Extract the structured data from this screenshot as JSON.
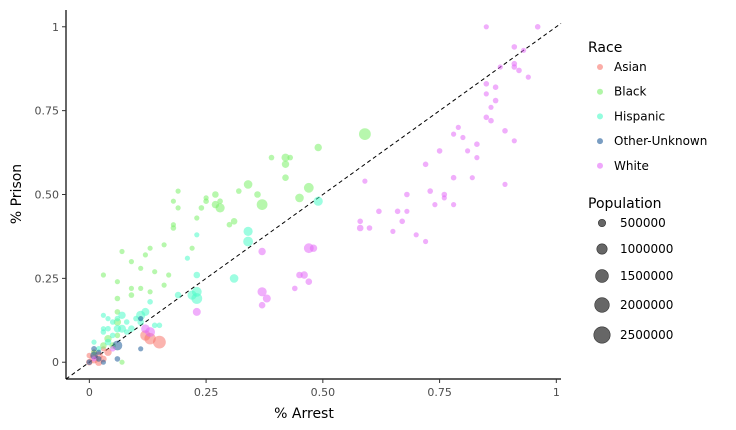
{
  "chart_data": {
    "type": "scatter",
    "xlabel": "% Arrest",
    "ylabel": "% Prison",
    "xlim": [
      -0.05,
      1.01
    ],
    "ylim": [
      -0.05,
      1.05
    ],
    "xticks": [
      0,
      0.25,
      0.5,
      0.75,
      1
    ],
    "xtick_labels": [
      "0",
      "0.25",
      "0.50",
      "0.75",
      "1"
    ],
    "yticks": [
      0,
      0.25,
      0.5,
      0.75,
      1
    ],
    "ytick_labels": [
      "0",
      "0.25",
      "0.50",
      "0.75",
      "1"
    ],
    "grid": false,
    "reference_line": {
      "style": "dashed",
      "from": [
        -0.05,
        -0.05
      ],
      "to": [
        1.01,
        1.01
      ]
    },
    "legend_placement": "right",
    "legend_race": {
      "title": "Race",
      "items": [
        {
          "label": "Asian",
          "color": "#F8766D"
        },
        {
          "label": "Black",
          "color": "#7CF06A"
        },
        {
          "label": "Hispanic",
          "color": "#4DFCC8"
        },
        {
          "label": "Other-Unknown",
          "color": "#1F5C99"
        },
        {
          "label": "White",
          "color": "#E46CF8"
        }
      ]
    },
    "legend_size": {
      "title": "Population",
      "items": [
        {
          "label": "500000",
          "value": 500000
        },
        {
          "label": "1000000",
          "value": 1000000
        },
        {
          "label": "1500000",
          "value": 1500000
        },
        {
          "label": "2000000",
          "value": 2000000
        },
        {
          "label": "2500000",
          "value": 2500000
        }
      ]
    },
    "series": [
      {
        "name": "Asian",
        "color": "#F8766D",
        "points": [
          [
            0.0,
            0.0,
            400000
          ],
          [
            0.01,
            0.01,
            800000
          ],
          [
            0.02,
            0.02,
            600000
          ],
          [
            0.03,
            0.01,
            400000
          ],
          [
            0.04,
            0.03,
            500000
          ],
          [
            0.0,
            0.02,
            300000
          ],
          [
            0.02,
            0.0,
            500000
          ],
          [
            0.01,
            0.03,
            300000
          ],
          [
            0.03,
            0.04,
            200000
          ],
          [
            0.13,
            0.07,
            1200000
          ],
          [
            0.15,
            0.06,
            1500000
          ],
          [
            0.12,
            0.08,
            1000000
          ]
        ]
      },
      {
        "name": "Black",
        "color": "#7CF06A",
        "points": [
          [
            0.01,
            0.03,
            300000
          ],
          [
            0.03,
            0.05,
            400000
          ],
          [
            0.04,
            0.07,
            500000
          ],
          [
            0.05,
            0.05,
            400000
          ],
          [
            0.06,
            0.08,
            300000
          ],
          [
            0.06,
            0.12,
            500000
          ],
          [
            0.06,
            0.15,
            300000
          ],
          [
            0.06,
            0.19,
            300000
          ],
          [
            0.06,
            0.24,
            200000
          ],
          [
            0.03,
            0.26,
            200000
          ],
          [
            0.07,
            0.33,
            200000
          ],
          [
            0.09,
            0.2,
            300000
          ],
          [
            0.09,
            0.22,
            200000
          ],
          [
            0.09,
            0.3,
            200000
          ],
          [
            0.11,
            0.22,
            200000
          ],
          [
            0.11,
            0.28,
            200000
          ],
          [
            0.12,
            0.32,
            200000
          ],
          [
            0.13,
            0.34,
            200000
          ],
          [
            0.14,
            0.27,
            200000
          ],
          [
            0.16,
            0.23,
            200000
          ],
          [
            0.16,
            0.35,
            200000
          ],
          [
            0.17,
            0.26,
            200000
          ],
          [
            0.18,
            0.4,
            300000
          ],
          [
            0.18,
            0.41,
            200000
          ],
          [
            0.18,
            0.48,
            200000
          ],
          [
            0.19,
            0.46,
            200000
          ],
          [
            0.19,
            0.51,
            200000
          ],
          [
            0.22,
            0.34,
            200000
          ],
          [
            0.23,
            0.43,
            200000
          ],
          [
            0.24,
            0.46,
            300000
          ],
          [
            0.25,
            0.48,
            300000
          ],
          [
            0.25,
            0.49,
            200000
          ],
          [
            0.27,
            0.47,
            500000
          ],
          [
            0.27,
            0.5,
            400000
          ],
          [
            0.28,
            0.46,
            800000
          ],
          [
            0.28,
            0.48,
            300000
          ],
          [
            0.3,
            0.41,
            300000
          ],
          [
            0.31,
            0.42,
            400000
          ],
          [
            0.32,
            0.51,
            300000
          ],
          [
            0.34,
            0.53,
            700000
          ],
          [
            0.36,
            0.5,
            400000
          ],
          [
            0.37,
            0.47,
            1100000
          ],
          [
            0.39,
            0.61,
            300000
          ],
          [
            0.42,
            0.55,
            400000
          ],
          [
            0.42,
            0.59,
            500000
          ],
          [
            0.42,
            0.61,
            600000
          ],
          [
            0.43,
            0.61,
            300000
          ],
          [
            0.45,
            0.49,
            700000
          ],
          [
            0.47,
            0.52,
            900000
          ],
          [
            0.49,
            0.64,
            500000
          ],
          [
            0.59,
            0.68,
            1300000
          ],
          [
            0.07,
            0.0,
            200000
          ],
          [
            0.13,
            0.21,
            200000
          ]
        ]
      },
      {
        "name": "Hispanic",
        "color": "#4DFCC8",
        "points": [
          [
            0.01,
            0.06,
            200000
          ],
          [
            0.02,
            0.04,
            300000
          ],
          [
            0.03,
            0.09,
            300000
          ],
          [
            0.03,
            0.1,
            200000
          ],
          [
            0.03,
            0.14,
            200000
          ],
          [
            0.04,
            0.06,
            400000
          ],
          [
            0.04,
            0.1,
            300000
          ],
          [
            0.04,
            0.13,
            200000
          ],
          [
            0.05,
            0.08,
            300000
          ],
          [
            0.05,
            0.12,
            300000
          ],
          [
            0.06,
            0.1,
            500000
          ],
          [
            0.06,
            0.13,
            300000
          ],
          [
            0.07,
            0.1,
            600000
          ],
          [
            0.07,
            0.14,
            500000
          ],
          [
            0.08,
            0.09,
            300000
          ],
          [
            0.08,
            0.12,
            300000
          ],
          [
            0.09,
            0.1,
            400000
          ],
          [
            0.1,
            0.13,
            300000
          ],
          [
            0.11,
            0.14,
            800000
          ],
          [
            0.11,
            0.12,
            400000
          ],
          [
            0.12,
            0.15,
            600000
          ],
          [
            0.13,
            0.18,
            300000
          ],
          [
            0.14,
            0.11,
            300000
          ],
          [
            0.15,
            0.11,
            300000
          ],
          [
            0.19,
            0.2,
            400000
          ],
          [
            0.21,
            0.31,
            200000
          ],
          [
            0.22,
            0.2,
            800000
          ],
          [
            0.23,
            0.19,
            1100000
          ],
          [
            0.23,
            0.21,
            900000
          ],
          [
            0.23,
            0.26,
            400000
          ],
          [
            0.23,
            0.38,
            200000
          ],
          [
            0.31,
            0.25,
            700000
          ],
          [
            0.34,
            0.36,
            900000
          ],
          [
            0.34,
            0.39,
            800000
          ],
          [
            0.49,
            0.48,
            800000
          ]
        ]
      },
      {
        "name": "Other-Unknown",
        "color": "#1F5C99",
        "points": [
          [
            0.0,
            0.0,
            300000
          ],
          [
            0.01,
            0.02,
            500000
          ],
          [
            0.01,
            0.04,
            300000
          ],
          [
            0.02,
            0.01,
            300000
          ],
          [
            0.02,
            0.03,
            200000
          ],
          [
            0.03,
            0.0,
            200000
          ],
          [
            0.06,
            0.05,
            900000
          ],
          [
            0.06,
            0.01,
            300000
          ],
          [
            0.11,
            0.04,
            200000
          ],
          [
            0.11,
            0.13,
            200000
          ]
        ]
      },
      {
        "name": "White",
        "color": "#E46CF8",
        "points": [
          [
            0.01,
            0.01,
            200000
          ],
          [
            0.05,
            0.04,
            300000
          ],
          [
            0.12,
            0.1,
            700000
          ],
          [
            0.13,
            0.09,
            900000
          ],
          [
            0.23,
            0.15,
            600000
          ],
          [
            0.37,
            0.21,
            800000
          ],
          [
            0.38,
            0.19,
            600000
          ],
          [
            0.37,
            0.17,
            400000
          ],
          [
            0.37,
            0.33,
            500000
          ],
          [
            0.44,
            0.22,
            300000
          ],
          [
            0.45,
            0.26,
            400000
          ],
          [
            0.46,
            0.26,
            500000
          ],
          [
            0.47,
            0.24,
            400000
          ],
          [
            0.47,
            0.34,
            900000
          ],
          [
            0.48,
            0.34,
            500000
          ],
          [
            0.58,
            0.4,
            400000
          ],
          [
            0.58,
            0.42,
            300000
          ],
          [
            0.59,
            0.54,
            200000
          ],
          [
            0.6,
            0.4,
            300000
          ],
          [
            0.62,
            0.45,
            300000
          ],
          [
            0.65,
            0.39,
            200000
          ],
          [
            0.66,
            0.45,
            300000
          ],
          [
            0.67,
            0.42,
            300000
          ],
          [
            0.68,
            0.45,
            200000
          ],
          [
            0.68,
            0.5,
            300000
          ],
          [
            0.7,
            0.38,
            200000
          ],
          [
            0.72,
            0.36,
            200000
          ],
          [
            0.72,
            0.59,
            300000
          ],
          [
            0.73,
            0.51,
            300000
          ],
          [
            0.74,
            0.47,
            200000
          ],
          [
            0.75,
            0.63,
            300000
          ],
          [
            0.76,
            0.5,
            300000
          ],
          [
            0.76,
            0.49,
            200000
          ],
          [
            0.78,
            0.47,
            200000
          ],
          [
            0.78,
            0.55,
            300000
          ],
          [
            0.78,
            0.68,
            200000
          ],
          [
            0.79,
            0.7,
            200000
          ],
          [
            0.8,
            0.67,
            200000
          ],
          [
            0.81,
            0.63,
            200000
          ],
          [
            0.82,
            0.55,
            200000
          ],
          [
            0.83,
            0.61,
            200000
          ],
          [
            0.83,
            0.65,
            300000
          ],
          [
            0.85,
            0.73,
            300000
          ],
          [
            0.85,
            0.8,
            200000
          ],
          [
            0.85,
            0.83,
            300000
          ],
          [
            0.86,
            0.72,
            300000
          ],
          [
            0.86,
            0.76,
            200000
          ],
          [
            0.87,
            0.78,
            300000
          ],
          [
            0.87,
            0.82,
            300000
          ],
          [
            0.88,
            0.88,
            200000
          ],
          [
            0.89,
            0.53,
            200000
          ],
          [
            0.89,
            0.69,
            300000
          ],
          [
            0.91,
            0.66,
            200000
          ],
          [
            0.91,
            0.88,
            300000
          ],
          [
            0.91,
            0.89,
            300000
          ],
          [
            0.92,
            0.87,
            300000
          ],
          [
            0.93,
            0.93,
            200000
          ],
          [
            0.91,
            0.94,
            300000
          ],
          [
            0.94,
            0.85,
            200000
          ],
          [
            0.96,
            1.0,
            300000
          ],
          [
            0.85,
            1.0,
            200000
          ]
        ]
      }
    ]
  }
}
